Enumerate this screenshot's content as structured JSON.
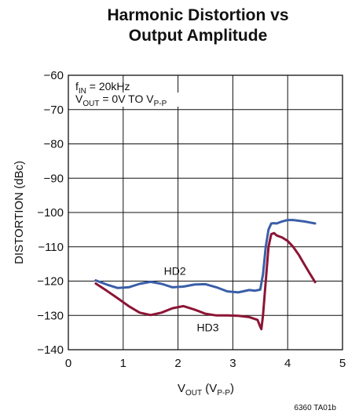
{
  "chart_data": {
    "type": "line",
    "title": [
      "Harmonic Distortion vs",
      "Output Amplitude"
    ],
    "ylabel": "DISTORTION (dBc)",
    "xlabel": {
      "main": "V",
      "sub": "OUT",
      "paren_open": " (V",
      "paren_sub": "P-P",
      "paren_close": ")"
    },
    "xlim": [
      0,
      5
    ],
    "ylim": [
      -140,
      -60
    ],
    "xticks": [
      0,
      1,
      2,
      3,
      4,
      5
    ],
    "yticks": [
      -60,
      -70,
      -80,
      -90,
      -100,
      -110,
      -120,
      -130,
      -140
    ],
    "xtick_labels": [
      "0",
      "1",
      "2",
      "3",
      "4",
      "5"
    ],
    "ytick_labels": [
      "−60",
      "−70",
      "−80",
      "−90",
      "−100",
      "−110",
      "−120",
      "−130",
      "−140"
    ],
    "grid": true,
    "annotation": {
      "line1": {
        "main": "f",
        "sub": "IN",
        "rest": " = 20kHz"
      },
      "line2": {
        "main": "V",
        "sub": "OUT",
        "mid": " = 0V TO V",
        "sub2": "P-P"
      }
    },
    "series": [
      {
        "name": "HD2",
        "color": "#3a5ea8",
        "x": [
          0.5,
          0.7,
          0.9,
          1.1,
          1.3,
          1.5,
          1.7,
          1.9,
          2.1,
          2.3,
          2.5,
          2.7,
          2.9,
          3.1,
          3.3,
          3.4,
          3.5,
          3.55,
          3.6,
          3.65,
          3.7,
          3.75,
          3.8,
          3.9,
          4.0,
          4.1,
          4.2,
          4.3,
          4.4,
          4.5
        ],
        "y": [
          -119.8,
          -121.0,
          -122.0,
          -121.8,
          -120.8,
          -120.2,
          -120.8,
          -121.8,
          -121.6,
          -121.0,
          -120.9,
          -121.8,
          -123.0,
          -123.3,
          -122.6,
          -122.8,
          -122.5,
          -118.0,
          -110.0,
          -105.0,
          -103.2,
          -103.1,
          -103.2,
          -102.6,
          -102.2,
          -102.2,
          -102.4,
          -102.6,
          -102.9,
          -103.2
        ]
      },
      {
        "name": "HD3",
        "color": "#8c1535",
        "x": [
          0.5,
          0.7,
          0.9,
          1.1,
          1.3,
          1.5,
          1.7,
          1.9,
          2.1,
          2.3,
          2.5,
          2.7,
          2.9,
          3.1,
          3.3,
          3.45,
          3.5,
          3.52,
          3.55,
          3.6,
          3.65,
          3.7,
          3.75,
          3.8,
          3.9,
          4.0,
          4.1,
          4.2,
          4.3,
          4.4,
          4.5
        ],
        "y": [
          -120.7,
          -122.8,
          -125.0,
          -127.3,
          -129.2,
          -129.9,
          -129.2,
          -127.9,
          -127.3,
          -128.3,
          -129.5,
          -130.0,
          -130.0,
          -130.1,
          -130.5,
          -131.3,
          -133.3,
          -134.0,
          -130.0,
          -120.0,
          -110.0,
          -106.3,
          -106.0,
          -106.7,
          -107.3,
          -108.3,
          -110.0,
          -112.3,
          -115.0,
          -117.7,
          -120.3
        ]
      }
    ],
    "series_labels": [
      {
        "text": "HD2",
        "at": [
          2.0,
          -117.0
        ]
      },
      {
        "text": "HD3",
        "at": [
          2.6,
          -133.5
        ]
      }
    ],
    "figure_id": "6360 TA01b"
  }
}
